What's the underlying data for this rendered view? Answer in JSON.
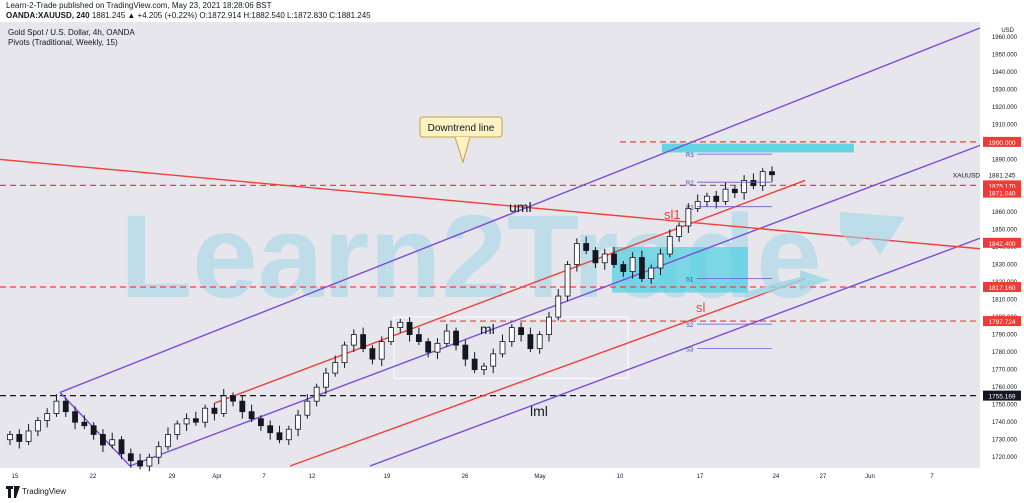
{
  "header": {
    "publisher": "Learn-2-Trade published on TradingView.com, May 23, 2021 18:28:06 BST",
    "symbol_line": "OANDA:XAUUSD, 240",
    "values_line": "1881.245 ▲ +4.205 (+0.22%) O:1872.914 H:1882.540 L:1872.830 C:1881.245"
  },
  "legend": {
    "title": "Gold Spot / U.S. Dollar, 4h, OANDA",
    "indicator": "Pivots (Traditional, Weekly, 15)"
  },
  "watermark": "Learn2Trade",
  "footer": {
    "brand": "TradingView"
  },
  "colors": {
    "background": "#e6e6ec",
    "candle": "#131722",
    "channel_purple": "#7c4dd8",
    "channel_red": "#f0403a",
    "level_red": "#f0403a",
    "zone_cyan": "#4dd0e1",
    "price_label": "#ef3b36",
    "watermark": "#9fd6e6"
  },
  "annotations": {
    "callout": "Downtrend line",
    "uml": "uml",
    "ml": "ml",
    "lml": "lml",
    "sl1": "sl1",
    "sl": "sl"
  },
  "pivots": [
    "R3",
    "R2",
    "R1",
    "S1",
    "S2",
    "S3"
  ],
  "chart_data": {
    "type": "candlestick",
    "ylabel": "USD",
    "ylim": [
      1715,
      1965
    ],
    "y_ticks": [
      1960.0,
      1950.0,
      1940.0,
      1930.0,
      1920.0,
      1910.0,
      1900.0,
      1890.0,
      1880.0,
      1870.0,
      1860.0,
      1850.0,
      1840.0,
      1830.0,
      1820.0,
      1810.0,
      1800.0,
      1790.0,
      1780.0,
      1770.0,
      1760.0,
      1750.0,
      1740.0,
      1730.0,
      1720.0
    ],
    "x_ticks": [
      "15",
      "22",
      "29",
      "Apr",
      "7",
      "12",
      "19",
      "26",
      "May",
      "10",
      "17",
      "24",
      "27",
      "Jun",
      "7"
    ],
    "price_labels": [
      "1900.000",
      "1875.170",
      "1871.040",
      "1881.245",
      "1842.400",
      "1817.160",
      "1797.724",
      "1755.169"
    ],
    "current_symbol": "XAUUSD",
    "current_price": 1881.245,
    "horizontal_levels": [
      1900.0,
      1875.17,
      1842.4,
      1817.16,
      1797.724,
      1755.169
    ],
    "close_path": [
      1733,
      1729,
      1735,
      1741,
      1745,
      1752,
      1746,
      1740,
      1738,
      1733,
      1727,
      1730,
      1722,
      1718,
      1715,
      1720,
      1726,
      1733,
      1739,
      1742,
      1740,
      1748,
      1745,
      1755,
      1752,
      1746,
      1742,
      1738,
      1734,
      1730,
      1736,
      1744,
      1752,
      1760,
      1768,
      1774,
      1784,
      1790,
      1782,
      1776,
      1786,
      1794,
      1797,
      1790,
      1786,
      1780,
      1785,
      1792,
      1784,
      1776,
      1770,
      1772,
      1779,
      1786,
      1794,
      1790,
      1782,
      1790,
      1800,
      1812,
      1830,
      1842,
      1838,
      1831,
      1836,
      1830,
      1826,
      1834,
      1822,
      1828,
      1836,
      1846,
      1852,
      1862,
      1866,
      1869,
      1866,
      1873,
      1871,
      1878,
      1875,
      1883,
      1881.245
    ]
  }
}
